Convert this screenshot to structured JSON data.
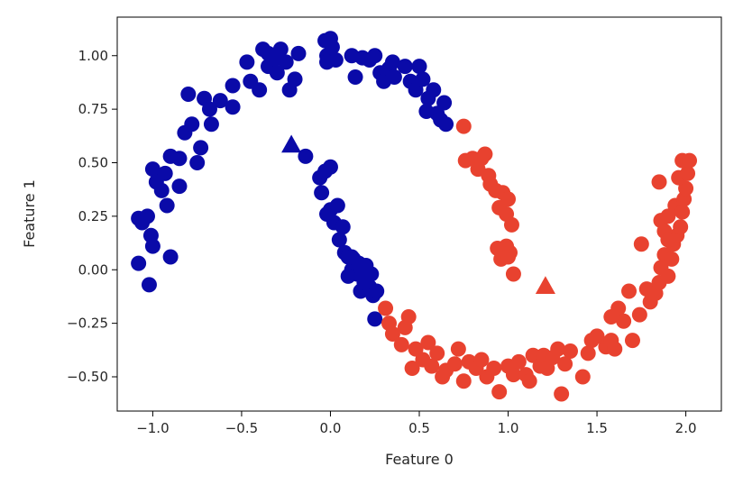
{
  "chart_data": {
    "type": "scatter",
    "title": "",
    "xlabel": "Feature 0",
    "ylabel": "Feature 1",
    "xlim": [
      -1.2,
      2.2
    ],
    "ylim": [
      -0.66,
      1.18
    ],
    "xticks": [
      -1.0,
      -0.5,
      0.0,
      0.5,
      1.0,
      1.5,
      2.0
    ],
    "xtick_labels": [
      "−1.0",
      "−0.5",
      "0.0",
      "0.5",
      "1.0",
      "1.5",
      "2.0"
    ],
    "yticks": [
      -0.5,
      -0.25,
      0.0,
      0.25,
      0.5,
      0.75,
      1.0
    ],
    "ytick_labels": [
      "−0.50",
      "−0.25",
      "0.00",
      "0.25",
      "0.50",
      "0.75",
      "1.00"
    ],
    "grid": false,
    "legend": "none",
    "colors": {
      "class_0": "#0a0aa8",
      "class_1": "#e8422f"
    },
    "series": [
      {
        "marker": "circle",
        "color": "#0a0aa8",
        "points": [
          [
            -1.08,
            0.24
          ],
          [
            -1.03,
            0.25
          ],
          [
            -1.06,
            0.22
          ],
          [
            -1.01,
            0.16
          ],
          [
            -1.0,
            0.11
          ],
          [
            -1.08,
            0.03
          ],
          [
            -1.02,
            -0.07
          ],
          [
            -0.9,
            0.06
          ],
          [
            -0.92,
            0.3
          ],
          [
            -0.85,
            0.39
          ],
          [
            -1.0,
            0.47
          ],
          [
            -0.98,
            0.41
          ],
          [
            -0.95,
            0.37
          ],
          [
            -0.93,
            0.45
          ],
          [
            -0.9,
            0.53
          ],
          [
            -0.85,
            0.52
          ],
          [
            -0.82,
            0.64
          ],
          [
            -0.78,
            0.68
          ],
          [
            -0.75,
            0.5
          ],
          [
            -0.73,
            0.57
          ],
          [
            -0.8,
            0.82
          ],
          [
            -0.71,
            0.8
          ],
          [
            -0.68,
            0.75
          ],
          [
            -0.67,
            0.68
          ],
          [
            -0.62,
            0.79
          ],
          [
            -0.55,
            0.86
          ],
          [
            -0.55,
            0.76
          ],
          [
            -0.47,
            0.97
          ],
          [
            -0.45,
            0.88
          ],
          [
            -0.4,
            0.84
          ],
          [
            -0.38,
            1.03
          ],
          [
            -0.35,
            0.95
          ],
          [
            -0.35,
            1.01
          ],
          [
            -0.32,
            0.98
          ],
          [
            -0.3,
            0.92
          ],
          [
            -0.28,
            1.03
          ],
          [
            -0.25,
            0.97
          ],
          [
            -0.23,
            0.84
          ],
          [
            -0.2,
            0.89
          ],
          [
            -0.18,
            1.01
          ],
          [
            -0.03,
            1.07
          ],
          [
            -0.02,
            1.0
          ],
          [
            0.0,
            1.08
          ],
          [
            0.01,
            1.04
          ],
          [
            0.03,
            0.98
          ],
          [
            -0.02,
            0.97
          ],
          [
            0.12,
            1.0
          ],
          [
            0.14,
            0.9
          ],
          [
            0.18,
            0.99
          ],
          [
            0.22,
            0.98
          ],
          [
            0.25,
            1.0
          ],
          [
            0.28,
            0.92
          ],
          [
            0.3,
            0.88
          ],
          [
            0.33,
            0.94
          ],
          [
            0.35,
            0.97
          ],
          [
            0.36,
            0.9
          ],
          [
            0.42,
            0.95
          ],
          [
            0.45,
            0.88
          ],
          [
            0.48,
            0.84
          ],
          [
            0.5,
            0.95
          ],
          [
            0.52,
            0.89
          ],
          [
            0.55,
            0.8
          ],
          [
            0.58,
            0.84
          ],
          [
            0.6,
            0.73
          ],
          [
            0.62,
            0.7
          ],
          [
            0.64,
            0.78
          ],
          [
            0.65,
            0.68
          ],
          [
            0.54,
            0.74
          ],
          [
            -0.14,
            0.53
          ],
          [
            -0.06,
            0.43
          ],
          [
            -0.05,
            0.36
          ],
          [
            -0.03,
            0.46
          ],
          [
            0.0,
            0.48
          ],
          [
            -0.02,
            0.26
          ],
          [
            0.0,
            0.28
          ],
          [
            0.02,
            0.22
          ],
          [
            0.04,
            0.3
          ],
          [
            0.05,
            0.14
          ],
          [
            0.07,
            0.2
          ],
          [
            0.08,
            0.08
          ],
          [
            0.1,
            0.06
          ],
          [
            0.12,
            0.0
          ],
          [
            0.13,
            0.05
          ],
          [
            0.15,
            -0.02
          ],
          [
            0.16,
            0.03
          ],
          [
            0.17,
            -0.1
          ],
          [
            0.19,
            -0.06
          ],
          [
            0.2,
            0.02
          ],
          [
            0.22,
            -0.08
          ],
          [
            0.24,
            -0.12
          ],
          [
            0.25,
            -0.23
          ],
          [
            0.26,
            -0.1
          ],
          [
            0.23,
            -0.02
          ],
          [
            0.1,
            -0.03
          ],
          [
            0.12,
            0.06
          ]
        ]
      },
      {
        "marker": "circle",
        "color": "#e8422f",
        "points": [
          [
            0.75,
            0.67
          ],
          [
            0.76,
            0.51
          ],
          [
            0.8,
            0.52
          ],
          [
            0.83,
            0.47
          ],
          [
            0.85,
            0.52
          ],
          [
            0.87,
            0.54
          ],
          [
            0.89,
            0.44
          ],
          [
            0.9,
            0.4
          ],
          [
            0.93,
            0.37
          ],
          [
            0.95,
            0.29
          ],
          [
            0.97,
            0.36
          ],
          [
            0.99,
            0.26
          ],
          [
            1.0,
            0.33
          ],
          [
            1.02,
            0.21
          ],
          [
            0.94,
            0.1
          ],
          [
            0.96,
            0.05
          ],
          [
            0.99,
            0.11
          ],
          [
            1.01,
            0.08
          ],
          [
            1.03,
            -0.02
          ],
          [
            1.0,
            0.06
          ],
          [
            0.31,
            -0.18
          ],
          [
            0.33,
            -0.25
          ],
          [
            0.35,
            -0.3
          ],
          [
            0.4,
            -0.35
          ],
          [
            0.42,
            -0.27
          ],
          [
            0.44,
            -0.22
          ],
          [
            0.46,
            -0.46
          ],
          [
            0.48,
            -0.37
          ],
          [
            0.52,
            -0.42
          ],
          [
            0.55,
            -0.34
          ],
          [
            0.57,
            -0.45
          ],
          [
            0.6,
            -0.39
          ],
          [
            0.63,
            -0.5
          ],
          [
            0.65,
            -0.47
          ],
          [
            0.7,
            -0.44
          ],
          [
            0.72,
            -0.37
          ],
          [
            0.75,
            -0.52
          ],
          [
            0.78,
            -0.43
          ],
          [
            0.82,
            -0.46
          ],
          [
            0.85,
            -0.42
          ],
          [
            0.88,
            -0.5
          ],
          [
            0.92,
            -0.46
          ],
          [
            0.95,
            -0.57
          ],
          [
            1.0,
            -0.45
          ],
          [
            1.03,
            -0.49
          ],
          [
            1.06,
            -0.43
          ],
          [
            1.1,
            -0.49
          ],
          [
            1.12,
            -0.52
          ],
          [
            1.14,
            -0.4
          ],
          [
            1.18,
            -0.45
          ],
          [
            1.2,
            -0.4
          ],
          [
            1.22,
            -0.46
          ],
          [
            1.25,
            -0.41
          ],
          [
            1.28,
            -0.37
          ],
          [
            1.3,
            -0.58
          ],
          [
            1.32,
            -0.44
          ],
          [
            1.35,
            -0.38
          ],
          [
            1.42,
            -0.5
          ],
          [
            1.45,
            -0.39
          ],
          [
            1.47,
            -0.33
          ],
          [
            1.5,
            -0.31
          ],
          [
            1.55,
            -0.36
          ],
          [
            1.58,
            -0.33
          ],
          [
            1.6,
            -0.37
          ],
          [
            1.62,
            -0.18
          ],
          [
            1.65,
            -0.24
          ],
          [
            1.68,
            -0.1
          ],
          [
            1.7,
            -0.33
          ],
          [
            1.74,
            -0.21
          ],
          [
            1.78,
            -0.09
          ],
          [
            1.8,
            -0.15
          ],
          [
            1.83,
            -0.11
          ],
          [
            1.85,
            -0.06
          ],
          [
            1.86,
            0.01
          ],
          [
            1.88,
            0.07
          ],
          [
            1.9,
            -0.03
          ],
          [
            1.92,
            0.05
          ],
          [
            1.93,
            0.12
          ],
          [
            1.95,
            0.16
          ],
          [
            1.97,
            0.2
          ],
          [
            1.86,
            0.23
          ],
          [
            1.88,
            0.18
          ],
          [
            1.9,
            0.25
          ],
          [
            1.94,
            0.3
          ],
          [
            1.98,
            0.27
          ],
          [
            1.99,
            0.33
          ],
          [
            2.0,
            0.38
          ],
          [
            1.85,
            0.41
          ],
          [
            1.96,
            0.43
          ],
          [
            2.01,
            0.45
          ],
          [
            1.98,
            0.51
          ],
          [
            2.02,
            0.51
          ],
          [
            1.58,
            -0.22
          ],
          [
            1.75,
            0.12
          ],
          [
            1.9,
            0.14
          ]
        ]
      },
      {
        "marker": "triangle",
        "color": "#0a0aa8",
        "points": [
          [
            -0.22,
            0.58
          ]
        ]
      },
      {
        "marker": "triangle",
        "color": "#e8422f",
        "points": [
          [
            1.21,
            -0.08
          ]
        ]
      }
    ]
  }
}
